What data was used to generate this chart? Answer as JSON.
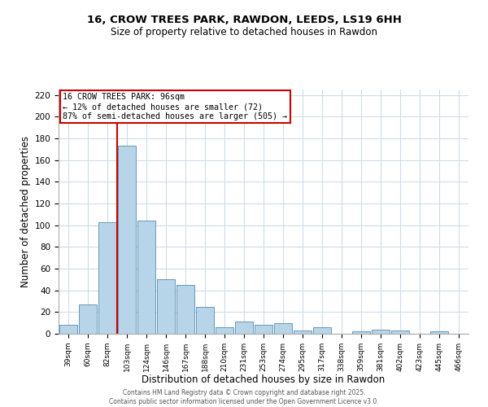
{
  "title": "16, CROW TREES PARK, RAWDON, LEEDS, LS19 6HH",
  "subtitle": "Size of property relative to detached houses in Rawdon",
  "xlabel": "Distribution of detached houses by size in Rawdon",
  "ylabel": "Number of detached properties",
  "bar_labels": [
    "39sqm",
    "60sqm",
    "82sqm",
    "103sqm",
    "124sqm",
    "146sqm",
    "167sqm",
    "188sqm",
    "210sqm",
    "231sqm",
    "253sqm",
    "274sqm",
    "295sqm",
    "317sqm",
    "338sqm",
    "359sqm",
    "381sqm",
    "402sqm",
    "423sqm",
    "445sqm",
    "466sqm"
  ],
  "bar_values": [
    8,
    27,
    103,
    173,
    104,
    50,
    45,
    25,
    6,
    11,
    8,
    10,
    3,
    6,
    0,
    2,
    4,
    3,
    0,
    2,
    0
  ],
  "bar_color": "#b8d4e8",
  "bar_edge_color": "#6699bb",
  "ylim": [
    0,
    225
  ],
  "yticks": [
    0,
    20,
    40,
    60,
    80,
    100,
    120,
    140,
    160,
    180,
    200,
    220
  ],
  "property_line_x": 2.5,
  "annotation_title": "16 CROW TREES PARK: 96sqm",
  "annotation_line1": "← 12% of detached houses are smaller (72)",
  "annotation_line2": "87% of semi-detached houses are larger (505) →",
  "annotation_box_color": "#cc0000",
  "property_line_color": "#cc0000",
  "bg_color": "#ffffff",
  "grid_color": "#ccdde8",
  "footer_line1": "Contains HM Land Registry data © Crown copyright and database right 2025.",
  "footer_line2": "Contains public sector information licensed under the Open Government Licence v3.0."
}
